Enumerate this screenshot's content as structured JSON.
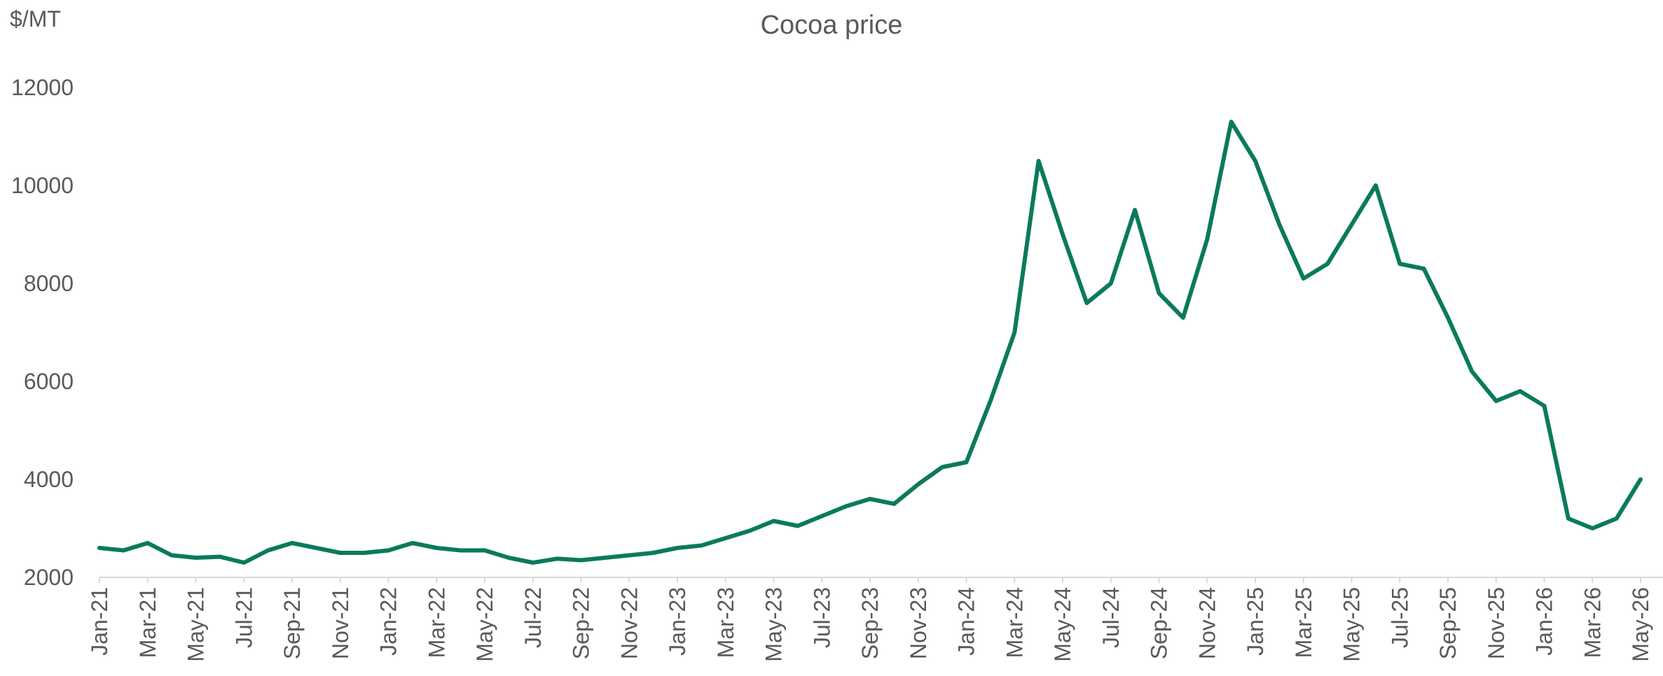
{
  "chart_data": {
    "type": "line",
    "title": "Cocoa price",
    "ylabel": "$/MT",
    "xlabel": "",
    "ylim": [
      2000,
      12600
    ],
    "yticks": [
      2000,
      4000,
      6000,
      8000,
      10000,
      12000
    ],
    "grid": false,
    "legend": "none",
    "line_color": "#0a7a5c",
    "x_start": "Jan-21",
    "x_end": "May-26",
    "xtick_labels": [
      "Jan-21",
      "Mar-21",
      "May-21",
      "Jul-21",
      "Sep-21",
      "Nov-21",
      "Jan-22",
      "Mar-22",
      "May-22",
      "Jul-22",
      "Sep-22",
      "Nov-22",
      "Jan-23",
      "Mar-23",
      "May-23",
      "Jul-23",
      "Sep-23",
      "Nov-23",
      "Jan-24",
      "Mar-24",
      "May-24",
      "Jul-24",
      "Sep-24",
      "Nov-24",
      "Jan-25",
      "Mar-25",
      "May-25",
      "Jul-25",
      "Sep-25",
      "Nov-25",
      "Jan-26",
      "Mar-26",
      "May-26"
    ],
    "series": [
      {
        "x": [
          "Jan-21",
          "Feb-21",
          "Mar-21",
          "Apr-21",
          "May-21",
          "Jun-21",
          "Jul-21",
          "Aug-21",
          "Sep-21",
          "Oct-21",
          "Nov-21",
          "Dec-21",
          "Jan-22",
          "Feb-22",
          "Mar-22",
          "Apr-22",
          "May-22",
          "Jun-22",
          "Jul-22",
          "Aug-22",
          "Sep-22",
          "Oct-22",
          "Nov-22",
          "Dec-22",
          "Jan-23",
          "Feb-23",
          "Mar-23",
          "Apr-23",
          "May-23",
          "Jun-23",
          "Jul-23",
          "Aug-23",
          "Sep-23",
          "Oct-23",
          "Nov-23",
          "Dec-23",
          "Jan-24",
          "Feb-24",
          "Mar-24",
          "Apr-24",
          "May-24",
          "Jun-24",
          "Jul-24",
          "Aug-24",
          "Sep-24",
          "Oct-24",
          "Nov-24",
          "Dec-24",
          "Jan-25",
          "Feb-25",
          "Mar-25",
          "Apr-25",
          "May-25",
          "Jun-25",
          "Jul-25",
          "Aug-25",
          "Sep-25",
          "Oct-25",
          "Nov-25",
          "Dec-25",
          "Jan-26",
          "Feb-26",
          "Mar-26",
          "Apr-26",
          "May-26"
        ],
        "values": [
          2600,
          2550,
          2700,
          2450,
          2400,
          2420,
          2300,
          2550,
          2700,
          2600,
          2500,
          2500,
          2550,
          2700,
          2600,
          2550,
          2550,
          2400,
          2300,
          2380,
          2350,
          2400,
          2450,
          2500,
          2600,
          2650,
          2800,
          2950,
          3150,
          3050,
          3250,
          3450,
          3600,
          3500,
          3900,
          4250,
          4350,
          5600,
          7000,
          10500,
          9000,
          7600,
          8000,
          9500,
          7800,
          7300,
          8900,
          11300,
          10500,
          9200,
          8100,
          8400,
          9200,
          10000,
          8400,
          8300,
          7300,
          6200,
          5600,
          5800,
          5500,
          3200,
          3000,
          3200,
          4000
        ]
      }
    ]
  }
}
